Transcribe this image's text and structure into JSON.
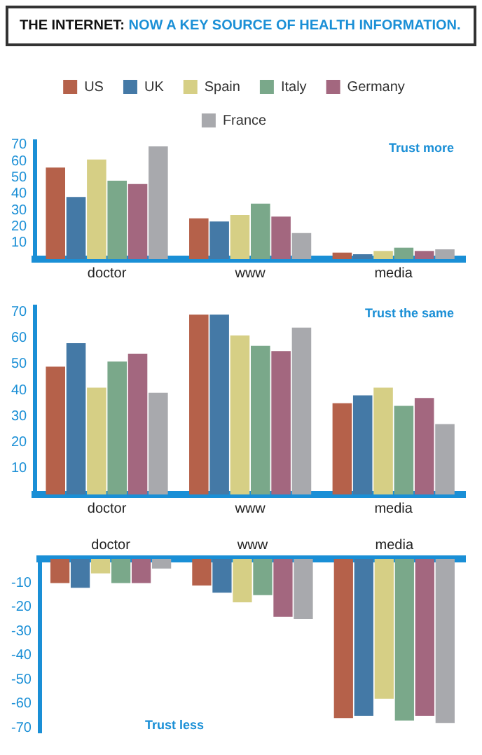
{
  "chart_data": [
    {
      "type": "bar",
      "title": "THE INTERNET:",
      "subtitle": "NOW A KEY SOURCE OF HEALTH INFORMATION.",
      "categories": [
        "doctor",
        "www",
        "media"
      ],
      "ylim": [
        0,
        72
      ],
      "yticks": [
        10,
        20,
        30,
        40,
        50,
        60,
        70
      ],
      "grid": false,
      "legend": "top",
      "annotations": [
        "Trust more"
      ],
      "series": [
        {
          "name": "US",
          "color": "#b5614a",
          "values": [
            56,
            25,
            4
          ]
        },
        {
          "name": "UK",
          "color": "#4479a6",
          "values": [
            38,
            23,
            3
          ]
        },
        {
          "name": "Spain",
          "color": "#d6cf85",
          "values": [
            61,
            27,
            5
          ]
        },
        {
          "name": "Italy",
          "color": "#7aa88a",
          "values": [
            48,
            34,
            7
          ]
        },
        {
          "name": "Germany",
          "color": "#a3677f",
          "values": [
            46,
            26,
            5
          ]
        },
        {
          "name": "France",
          "color": "#a8a9ad",
          "values": [
            69,
            16,
            6
          ]
        }
      ]
    },
    {
      "type": "bar",
      "categories": [
        "doctor",
        "www",
        "media"
      ],
      "ylim": [
        0,
        72
      ],
      "yticks": [
        10,
        20,
        30,
        40,
        50,
        60,
        70
      ],
      "grid": false,
      "annotations": [
        "Trust the same"
      ],
      "series": [
        {
          "color": "#b5614a",
          "values": [
            49,
            69,
            35
          ]
        },
        {
          "color": "#4479a6",
          "values": [
            58,
            69,
            38
          ]
        },
        {
          "color": "#d6cf85",
          "values": [
            41,
            61,
            41
          ]
        },
        {
          "color": "#7aa88a",
          "values": [
            51,
            57,
            34
          ]
        },
        {
          "color": "#a3677f",
          "values": [
            54,
            55,
            37
          ]
        },
        {
          "color": "#a8a9ad",
          "values": [
            39,
            64,
            27
          ]
        }
      ]
    },
    {
      "type": "bar",
      "categories": [
        "doctor",
        "www",
        "media"
      ],
      "ylim": [
        -72,
        0
      ],
      "yticks": [
        -10,
        -20,
        -30,
        -40,
        -50,
        -60,
        -70
      ],
      "grid": false,
      "annotations": [
        "Trust less"
      ],
      "series": [
        {
          "color": "#b5614a",
          "values": [
            -10,
            -11,
            -66
          ]
        },
        {
          "color": "#4479a6",
          "values": [
            -12,
            -14,
            -65
          ]
        },
        {
          "color": "#d6cf85",
          "values": [
            -6,
            -18,
            -58
          ]
        },
        {
          "color": "#7aa88a",
          "values": [
            -10,
            -15,
            -67
          ]
        },
        {
          "color": "#a3677f",
          "values": [
            -10,
            -24,
            -65
          ]
        },
        {
          "color": "#a8a9ad",
          "values": [
            -4,
            -25,
            -68
          ]
        }
      ]
    }
  ]
}
